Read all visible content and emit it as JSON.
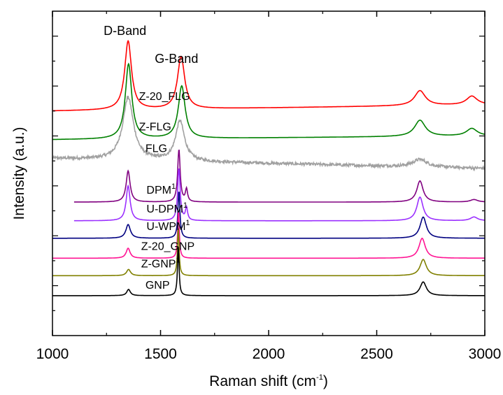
{
  "chart_data": {
    "type": "line",
    "xlabel": "Raman shift",
    "xlabel_unit_main": "cm",
    "xlabel_unit_sup": "-1",
    "ylabel": "Intensity (a.u.)",
    "xlim": [
      1000,
      3000
    ],
    "x_ticks": [
      1000,
      1500,
      2000,
      2500,
      3000
    ],
    "y_ticks_shown": false,
    "grid": false,
    "annotations": [
      {
        "text": "D-Band",
        "x": 1350
      },
      {
        "text": "G-Band",
        "x": 1590
      }
    ],
    "series": [
      {
        "name": "Z-20_FLG",
        "sup": "",
        "color": "#ff0000",
        "x_start": 1000,
        "baseline": 1.8,
        "baseline_slope": 0.05,
        "noise": 0,
        "peaks": [
          {
            "x": 1350,
            "h": 0.55,
            "w": 38
          },
          {
            "x": 1595,
            "h": 0.42,
            "w": 40
          },
          {
            "x": 2700,
            "h": 0.12,
            "w": 60
          },
          {
            "x": 2940,
            "h": 0.07,
            "w": 60
          }
        ]
      },
      {
        "name": "Z-FLG",
        "sup": "",
        "color": "#008000",
        "x_start": 1000,
        "baseline": 1.57,
        "baseline_slope": 0.03,
        "noise": 0,
        "peaks": [
          {
            "x": 1352,
            "h": 0.6,
            "w": 36
          },
          {
            "x": 1598,
            "h": 0.42,
            "w": 38
          },
          {
            "x": 2700,
            "h": 0.13,
            "w": 60
          },
          {
            "x": 2940,
            "h": 0.06,
            "w": 60
          }
        ]
      },
      {
        "name": "FLG",
        "sup": "",
        "color": "#a0a0a0",
        "x_start": 1000,
        "baseline": 1.42,
        "baseline_slope": -0.08,
        "noise": 0.012,
        "peaks": [
          {
            "x": 1350,
            "h": 0.5,
            "w": 60
          },
          {
            "x": 1590,
            "h": 0.32,
            "w": 50
          },
          {
            "x": 2700,
            "h": 0.06,
            "w": 80
          }
        ]
      },
      {
        "name": "DPM",
        "sup": "1",
        "color": "#800080",
        "x_start": 1100,
        "baseline": 1.07,
        "baseline_slope": 0.0,
        "noise": 0,
        "peaks": [
          {
            "x": 1350,
            "h": 0.25,
            "w": 22
          },
          {
            "x": 1585,
            "h": 0.42,
            "w": 14
          },
          {
            "x": 1620,
            "h": 0.1,
            "w": 12
          },
          {
            "x": 2700,
            "h": 0.17,
            "w": 35
          },
          {
            "x": 2950,
            "h": 0.02,
            "w": 40
          }
        ]
      },
      {
        "name": "U-DPM",
        "sup": "1",
        "color": "#9b30ff",
        "x_start": 1100,
        "baseline": 0.92,
        "baseline_slope": 0.0,
        "noise": 0,
        "peaks": [
          {
            "x": 1350,
            "h": 0.28,
            "w": 22
          },
          {
            "x": 1585,
            "h": 0.42,
            "w": 14
          },
          {
            "x": 1620,
            "h": 0.1,
            "w": 12
          },
          {
            "x": 2700,
            "h": 0.19,
            "w": 35
          },
          {
            "x": 2950,
            "h": 0.03,
            "w": 40
          }
        ]
      },
      {
        "name": "U-WPM",
        "sup": "1",
        "color": "#000080",
        "x_start": 1000,
        "baseline": 0.78,
        "baseline_slope": 0.0,
        "noise": 0,
        "peaks": [
          {
            "x": 1350,
            "h": 0.11,
            "w": 25
          },
          {
            "x": 1585,
            "h": 0.38,
            "w": 11
          },
          {
            "x": 2715,
            "h": 0.17,
            "w": 35
          }
        ]
      },
      {
        "name": "Z-20_GNP",
        "sup": "",
        "color": "#ff1493",
        "x_start": 1000,
        "baseline": 0.62,
        "baseline_slope": 0.0,
        "noise": 0,
        "peaks": [
          {
            "x": 1350,
            "h": 0.08,
            "w": 22
          },
          {
            "x": 1583,
            "h": 0.38,
            "w": 9
          },
          {
            "x": 2710,
            "h": 0.16,
            "w": 35
          }
        ]
      },
      {
        "name": "Z-GNP",
        "sup": "1",
        "color": "#808000",
        "x_start": 1000,
        "baseline": 0.48,
        "baseline_slope": 0.0,
        "noise": 0,
        "peaks": [
          {
            "x": 1352,
            "h": 0.05,
            "w": 22
          },
          {
            "x": 1582,
            "h": 0.38,
            "w": 9
          },
          {
            "x": 2715,
            "h": 0.13,
            "w": 35
          }
        ]
      },
      {
        "name": "GNP",
        "sup": "",
        "color": "#000000",
        "x_start": 1000,
        "baseline": 0.32,
        "baseline_slope": 0.0,
        "noise": 0,
        "peaks": [
          {
            "x": 1352,
            "h": 0.05,
            "w": 20
          },
          {
            "x": 1582,
            "h": 0.39,
            "w": 9
          },
          {
            "x": 2715,
            "h": 0.11,
            "w": 35
          }
        ]
      }
    ]
  }
}
